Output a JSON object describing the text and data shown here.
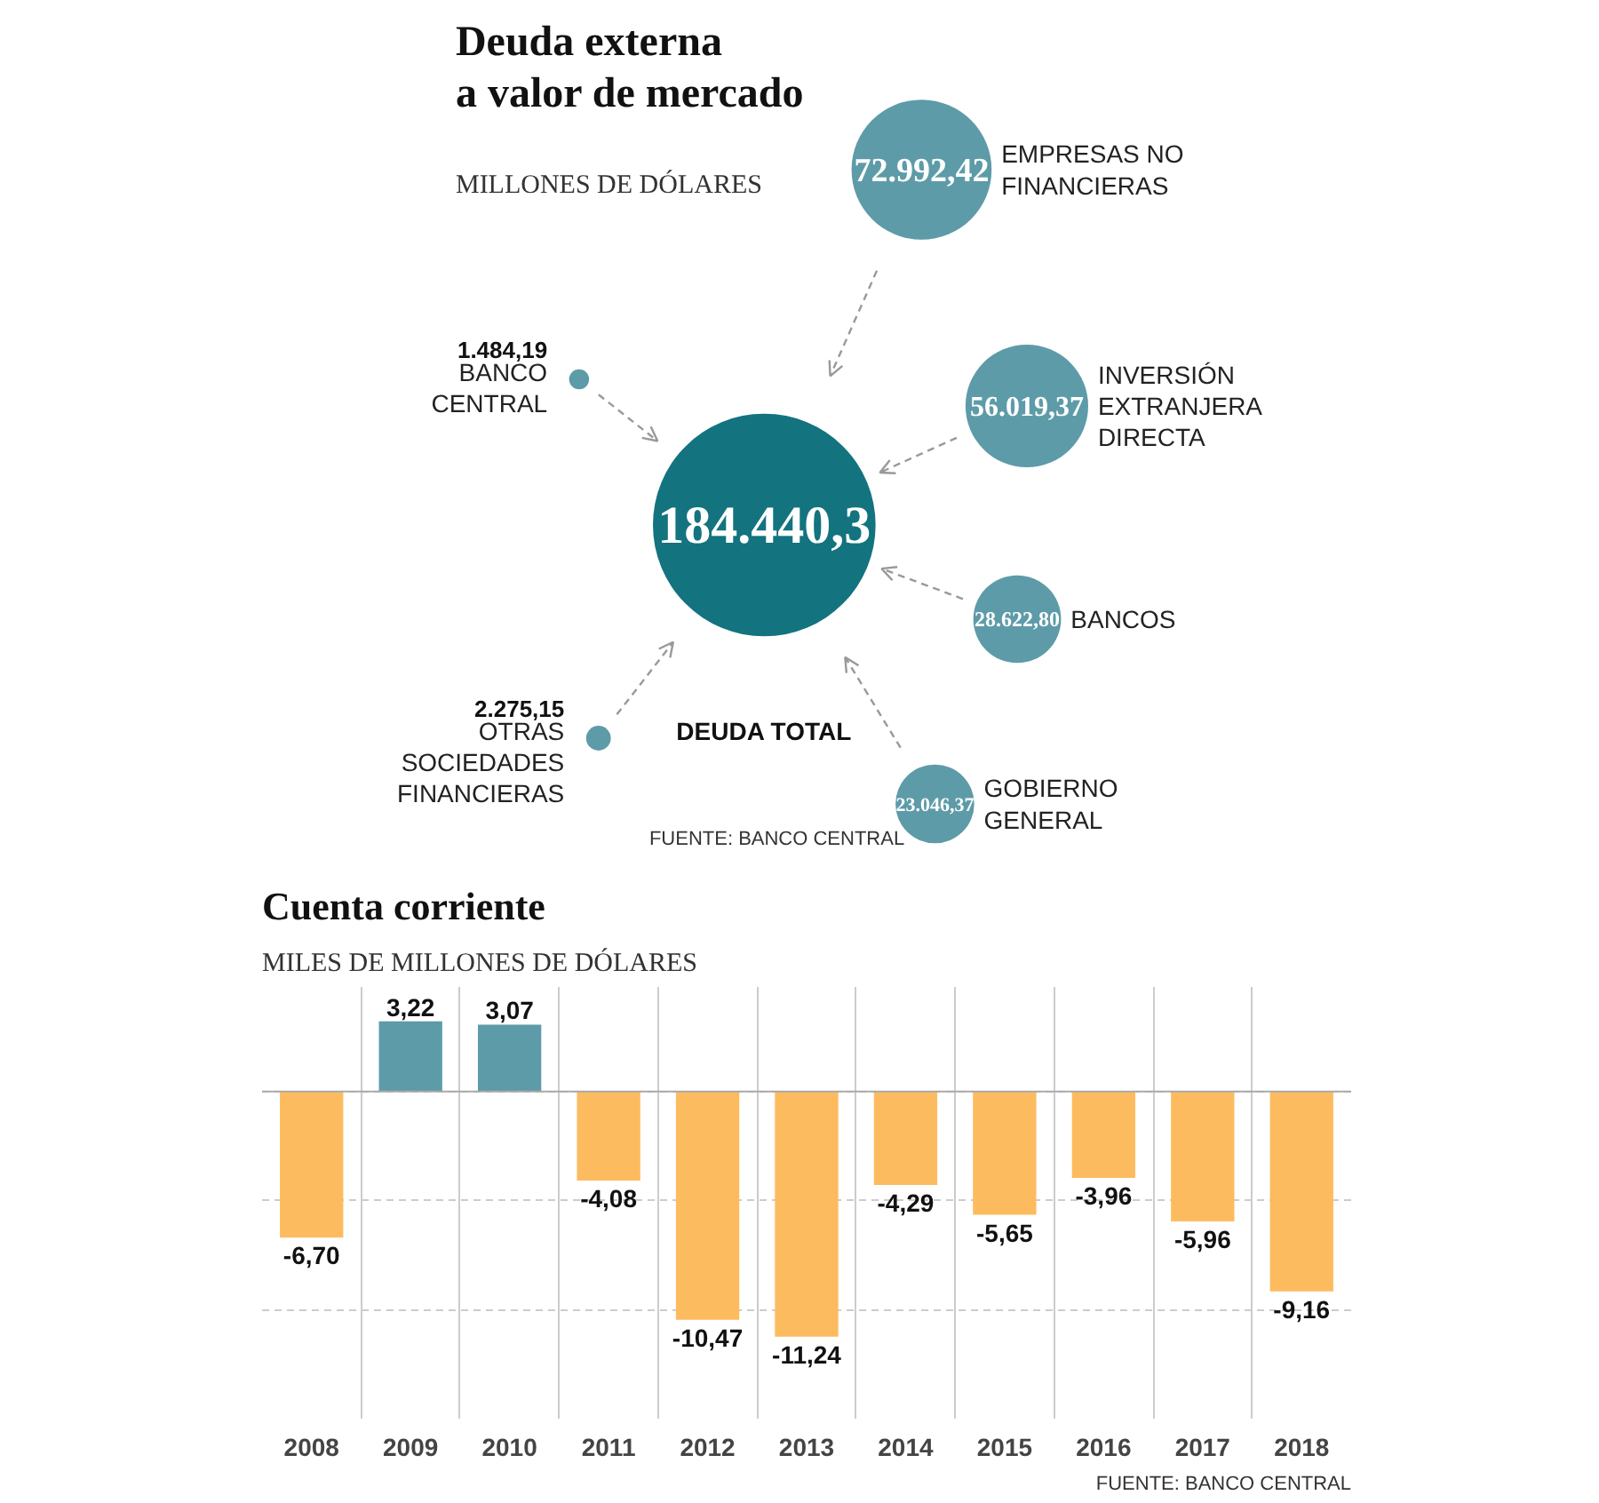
{
  "chart_data": [
    {
      "type": "other",
      "title": "Deuda externa\na valor de mercado",
      "subtitle": "MILLONES DE DÓLARES",
      "categories": [
        "DEUDA TOTAL",
        "EMPRESAS NO\nFINANCIERAS",
        "INVERSIÓN\nEXTRANJERA\nDIRECTA",
        "BANCOS",
        "GOBIERNO\nGENERAL",
        "BANCO\nCENTRAL",
        "OTRAS\nSOCIEDADES\nFINANCIERAS"
      ],
      "values": [
        184440.3,
        72992.42,
        56019.37,
        28622.8,
        23046.37,
        1484.19,
        2275.15
      ],
      "value_labels": [
        "184.440,3",
        "72.992,42",
        "56.019,37",
        "28.622,80",
        "23.046,37",
        "1.484,19",
        "2.275,15"
      ],
      "colors": [
        "#13737f",
        "#5e9ba8",
        "#5e9ba8",
        "#5e9ba8",
        "#5e9ba8",
        "#5e9ba8",
        "#5e9ba8"
      ],
      "annotations": [
        "FUENTE: BANCO CENTRAL"
      ]
    },
    {
      "type": "bar",
      "title": "Cuenta corriente",
      "subtitle": "MILES DE MILLONES DE DÓLARES",
      "categories": [
        "2008",
        "2009",
        "2010",
        "2011",
        "2012",
        "2013",
        "2014",
        "2015",
        "2016",
        "2017",
        "2018"
      ],
      "values": [
        -6.7,
        3.22,
        3.07,
        -4.08,
        -10.47,
        -11.24,
        -4.29,
        -5.65,
        -3.96,
        -5.96,
        -9.16
      ],
      "value_labels": [
        "-6,70",
        "3,22",
        "3,07",
        "-4,08",
        "-10,47",
        "-11,24",
        "-4,29",
        "-5,65",
        "-3,96",
        "-5,96",
        "-9,16"
      ],
      "colors": [
        "#fdbb5f",
        "#5e9ba8",
        "#5e9ba8",
        "#fdbb5f",
        "#fdbb5f",
        "#fdbb5f",
        "#fdbb5f",
        "#fdbb5f",
        "#fdbb5f",
        "#fdbb5f",
        "#fdbb5f"
      ],
      "ylim": [
        -15,
        4.8
      ],
      "yticks": [
        {
          "value": 0,
          "label": null
        },
        {
          "value": -5,
          "label": null
        },
        {
          "value": -10,
          "label": null
        }
      ],
      "tick_labels": "x",
      "grid": true,
      "annotations": [
        "FUENTE: BANCO CENTRAL"
      ]
    }
  ]
}
